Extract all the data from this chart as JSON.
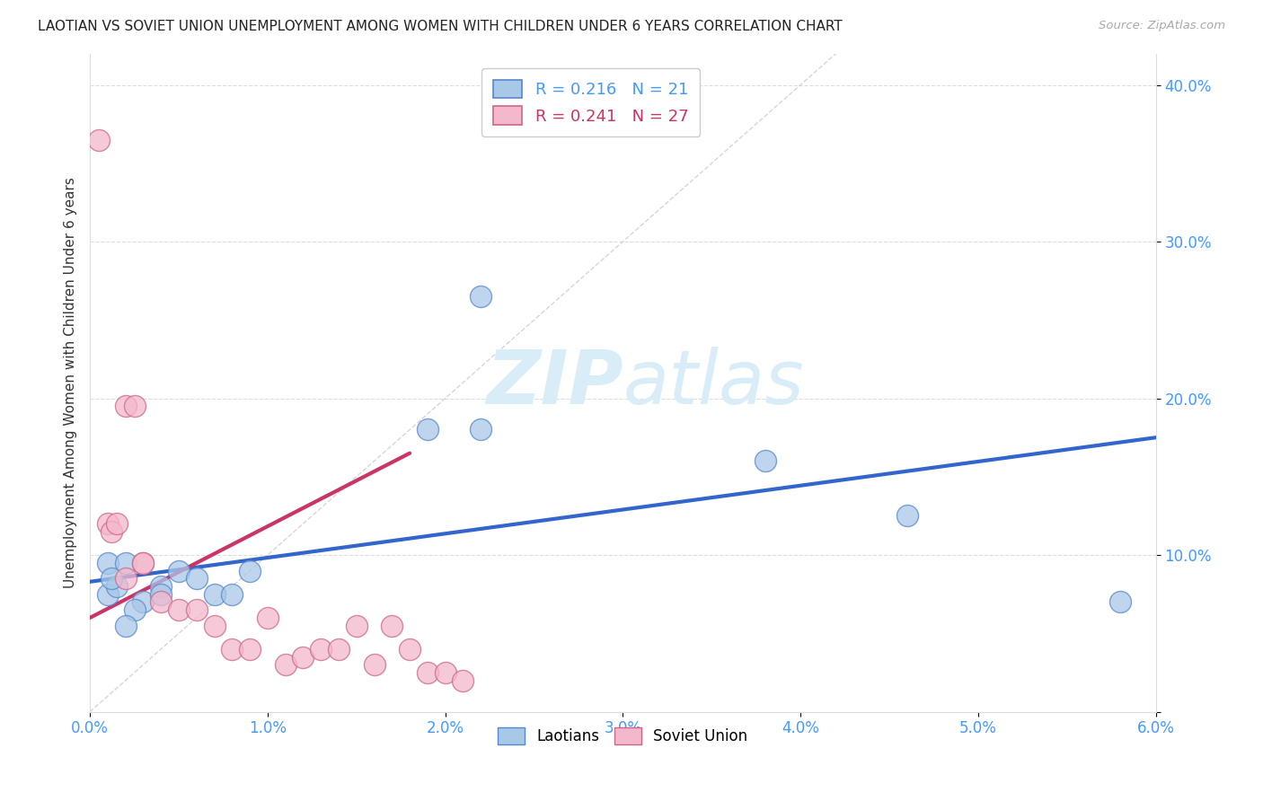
{
  "title": "LAOTIAN VS SOVIET UNION UNEMPLOYMENT AMONG WOMEN WITH CHILDREN UNDER 6 YEARS CORRELATION CHART",
  "source": "Source: ZipAtlas.com",
  "ylabel": "Unemployment Among Women with Children Under 6 years",
  "xlim": [
    0.0,
    0.06
  ],
  "ylim": [
    0.0,
    0.42
  ],
  "xticks": [
    0.0,
    0.01,
    0.02,
    0.03,
    0.04,
    0.05,
    0.06
  ],
  "xticklabels": [
    "0.0%",
    "1.0%",
    "2.0%",
    "3.0%",
    "4.0%",
    "5.0%",
    "6.0%"
  ],
  "yticks": [
    0.0,
    0.1,
    0.2,
    0.3,
    0.4
  ],
  "yticklabels": [
    "",
    "10.0%",
    "20.0%",
    "30.0%",
    "40.0%"
  ],
  "blue_R": 0.216,
  "blue_N": 21,
  "pink_R": 0.241,
  "pink_N": 27,
  "blue_scatter_x": [
    0.001,
    0.002,
    0.001,
    0.0015,
    0.003,
    0.0025,
    0.002,
    0.0012,
    0.004,
    0.004,
    0.005,
    0.006,
    0.007,
    0.008,
    0.009,
    0.022,
    0.019,
    0.022,
    0.038,
    0.046,
    0.058
  ],
  "blue_scatter_y": [
    0.095,
    0.095,
    0.075,
    0.08,
    0.07,
    0.065,
    0.055,
    0.085,
    0.08,
    0.075,
    0.09,
    0.085,
    0.075,
    0.075,
    0.09,
    0.265,
    0.18,
    0.18,
    0.16,
    0.125,
    0.07
  ],
  "pink_scatter_x": [
    0.0005,
    0.001,
    0.0012,
    0.0015,
    0.002,
    0.002,
    0.0025,
    0.003,
    0.003,
    0.004,
    0.005,
    0.006,
    0.007,
    0.008,
    0.009,
    0.01,
    0.011,
    0.012,
    0.013,
    0.014,
    0.015,
    0.016,
    0.017,
    0.018,
    0.019,
    0.02,
    0.021
  ],
  "pink_scatter_y": [
    0.365,
    0.12,
    0.115,
    0.12,
    0.085,
    0.195,
    0.195,
    0.095,
    0.095,
    0.07,
    0.065,
    0.065,
    0.055,
    0.04,
    0.04,
    0.06,
    0.03,
    0.035,
    0.04,
    0.04,
    0.055,
    0.03,
    0.055,
    0.04,
    0.025,
    0.025,
    0.02
  ],
  "blue_line_x": [
    0.0,
    0.06
  ],
  "blue_line_y": [
    0.083,
    0.175
  ],
  "pink_line_x": [
    0.0,
    0.018
  ],
  "pink_line_y": [
    0.06,
    0.165
  ],
  "diag_line_x": [
    0.0,
    0.042
  ],
  "diag_line_y": [
    0.0,
    0.42
  ],
  "background_color": "#ffffff",
  "blue_color": "#a8c8e8",
  "pink_color": "#f4b8cc",
  "blue_edge_color": "#5588cc",
  "pink_edge_color": "#cc6688",
  "blue_line_color": "#3366cc",
  "pink_line_color": "#cc3366",
  "diag_line_color": "#cccccc",
  "grid_color": "#dddddd",
  "tick_color": "#4499ff",
  "title_color": "#222222",
  "source_color": "#aaaaaa",
  "ylabel_color": "#333333",
  "watermark_color": "#d8edf8"
}
